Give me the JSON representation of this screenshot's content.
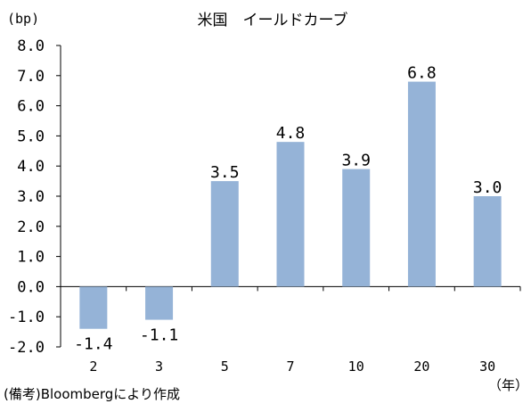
{
  "chart_data": {
    "type": "bar",
    "title": "米国　イールドカーブ",
    "ylabel_unit": "(bp)",
    "xlabel_unit": "（年）",
    "categories": [
      "2",
      "3",
      "5",
      "7",
      "10",
      "20",
      "30"
    ],
    "values": [
      -1.4,
      -1.1,
      3.5,
      4.8,
      3.9,
      6.8,
      3.0
    ],
    "data_labels": [
      "-1.4",
      "-1.1",
      "3.5",
      "4.8",
      "3.9",
      "6.8",
      "3.0"
    ],
    "ylim": [
      -2.0,
      8.0
    ],
    "yticks": [
      "-2.0",
      "-1.0",
      "0.0",
      "1.0",
      "2.0",
      "3.0",
      "4.0",
      "5.0",
      "6.0",
      "7.0",
      "8.0"
    ],
    "ytick_values": [
      -2.0,
      -1.0,
      0.0,
      1.0,
      2.0,
      3.0,
      4.0,
      5.0,
      6.0,
      7.0,
      8.0
    ],
    "grid": false,
    "legend": "none",
    "bar_color": "#95b3d7",
    "source_note": "(備考)Bloombergにより作成"
  }
}
